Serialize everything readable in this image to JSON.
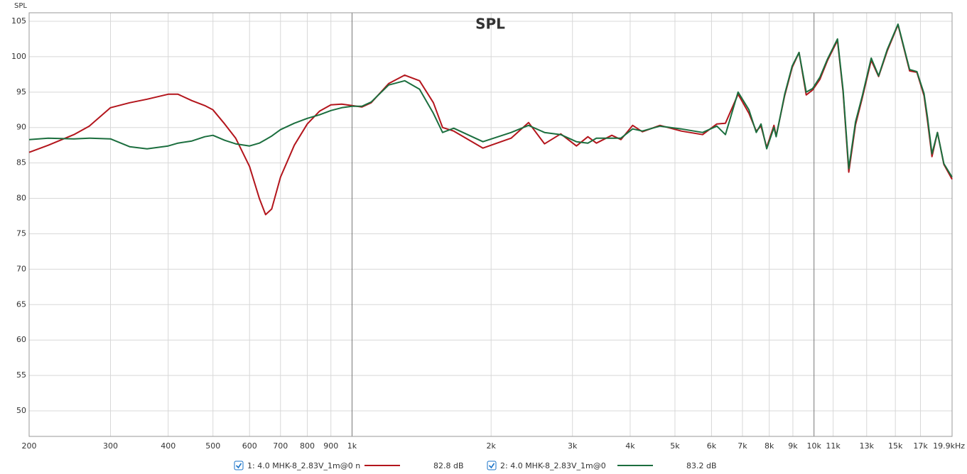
{
  "chart_data": {
    "type": "line",
    "title": "SPL",
    "y_label": "SPL",
    "x": [
      200,
      220,
      250,
      270,
      300,
      330,
      360,
      400,
      420,
      450,
      480,
      500,
      530,
      560,
      600,
      630,
      650,
      670,
      700,
      750,
      800,
      850,
      900,
      950,
      1000,
      1050,
      1100,
      1200,
      1300,
      1400,
      1500,
      1570,
      1660,
      1920,
      2210,
      2410,
      2610,
      2830,
      3060,
      3240,
      3380,
      3650,
      3820,
      4050,
      4250,
      4640,
      5160,
      5740,
      6160,
      6430,
      6850,
      7230,
      7500,
      7680,
      7900,
      8190,
      8280,
      8640,
      8970,
      9280,
      9620,
      9930,
      10300,
      10700,
      11240,
      11560,
      11890,
      12300,
      12700,
      13300,
      13800,
      14400,
      15200,
      16100,
      16700,
      17300,
      17600,
      18000,
      18500,
      19100,
      19900
    ],
    "series": [
      {
        "name": "1: 4.0 MHK-8_2.83V_1m@0 n",
        "level_label": "82.8 dB",
        "color": "#b3151c",
        "values": [
          86.5,
          87.5,
          89,
          90.2,
          92.8,
          93.5,
          94.0,
          94.7,
          94.7,
          93.8,
          93.1,
          92.5,
          90.5,
          88.5,
          84.5,
          80,
          77.7,
          78.5,
          83,
          87.5,
          90.5,
          92.3,
          93.2,
          93.3,
          93.1,
          92.9,
          93.5,
          96.2,
          97.4,
          96.6,
          93.5,
          90.0,
          89.5,
          87.1,
          88.5,
          90.7,
          87.7,
          89.1,
          87.4,
          88.7,
          87.8,
          88.9,
          88.3,
          90.3,
          89.4,
          90.3,
          89.5,
          89.0,
          90.5,
          90.6,
          94.7,
          92,
          89.5,
          90.2,
          87.2,
          90.3,
          88.8,
          94.5,
          98.5,
          100.6,
          94.6,
          95.3,
          96.8,
          99.5,
          102.3,
          95,
          83.7,
          90.4,
          94,
          99.5,
          97.2,
          100.8,
          104.5,
          98,
          97.8,
          94.5,
          91,
          85.9,
          89.3,
          84.8,
          82.7
        ]
      },
      {
        "name": "2: 4.0 MHK-8_2.83V_1m@0",
        "level_label": "83.2 dB",
        "color": "#1b6e3e",
        "values": [
          88.3,
          88.5,
          88.4,
          88.5,
          88.4,
          87.3,
          87.0,
          87.4,
          87.8,
          88.1,
          88.7,
          88.9,
          88.2,
          87.7,
          87.4,
          87.8,
          88.3,
          88.8,
          89.7,
          90.6,
          91.3,
          91.8,
          92.4,
          92.8,
          93.0,
          93.0,
          93.6,
          96.0,
          96.6,
          95.4,
          92.0,
          89.3,
          89.9,
          88.0,
          89.3,
          90.3,
          89.3,
          89.0,
          88.0,
          87.8,
          88.5,
          88.5,
          88.5,
          89.8,
          89.5,
          90.2,
          89.8,
          89.3,
          90.2,
          89.0,
          95.0,
          92.5,
          89.3,
          90.5,
          87.0,
          90.0,
          88.7,
          94.7,
          98.7,
          100.6,
          95.0,
          95.5,
          97.1,
          99.7,
          102.5,
          95.3,
          84.2,
          90.8,
          94.3,
          99.8,
          97.3,
          101.0,
          104.6,
          98.2,
          97.9,
          94.8,
          91.5,
          86.3,
          89.3,
          84.9,
          83.0
        ]
      }
    ],
    "xlim": [
      200,
      19900
    ],
    "log_x": true,
    "xticks": [
      200,
      300,
      400,
      500,
      600,
      700,
      800,
      900,
      {
        "value": 1000,
        "label": "1k"
      },
      {
        "value": 2000,
        "label": "2k"
      },
      {
        "value": 3000,
        "label": "3k"
      },
      {
        "value": 4000,
        "label": "4k"
      },
      {
        "value": 5000,
        "label": "5k"
      },
      {
        "value": 6000,
        "label": "6k"
      },
      {
        "value": 7000,
        "label": "7k"
      },
      {
        "value": 8000,
        "label": "8k"
      },
      {
        "value": 9000,
        "label": "9k"
      },
      {
        "value": 10000,
        "label": "10k"
      },
      {
        "value": 11000,
        "label": "11k"
      },
      {
        "value": 13000,
        "label": "13k"
      },
      {
        "value": 15000,
        "label": "15k"
      },
      {
        "value": 17000,
        "label": "17k"
      },
      {
        "value": 19900,
        "label": "19.9kHz"
      }
    ],
    "ylim": [
      46.4,
      106.2
    ],
    "yticks": [
      50,
      55,
      60,
      65,
      70,
      75,
      80,
      85,
      90,
      95,
      100,
      105
    ],
    "grid": true
  }
}
